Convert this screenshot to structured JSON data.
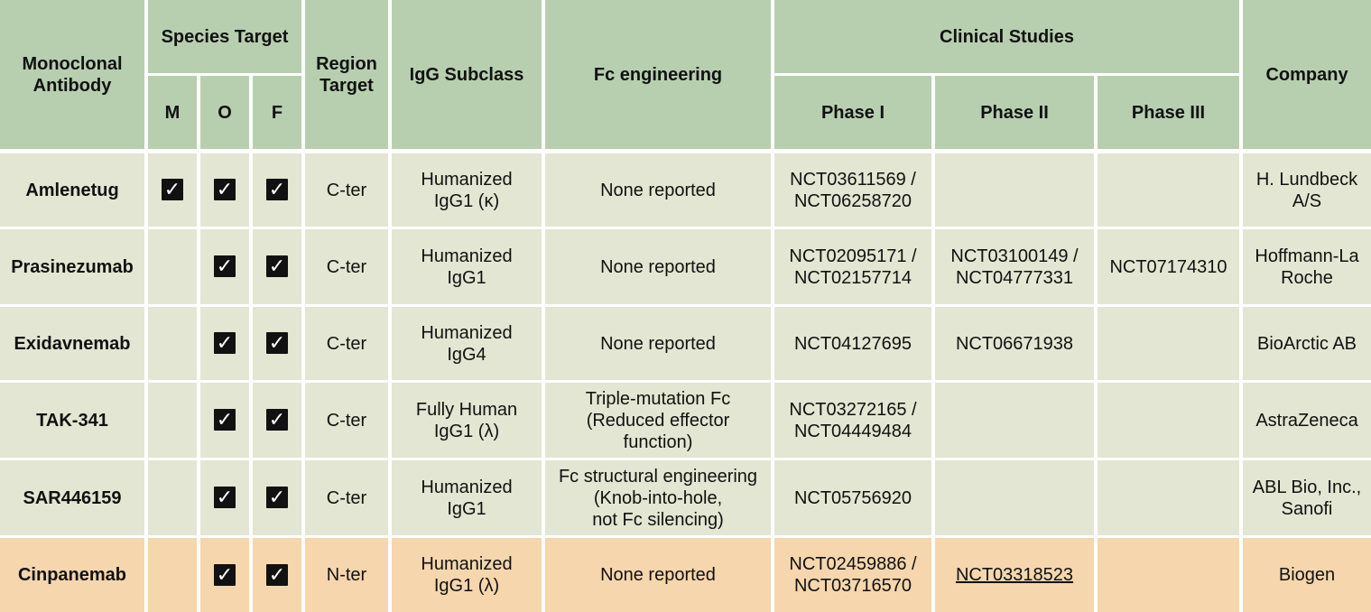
{
  "header": {
    "antibody": "Monoclonal Antibody",
    "species_target": "Species Target",
    "species": {
      "m": "M",
      "o": "O",
      "f": "F"
    },
    "region_target": "Region Target",
    "igg_subclass": "IgG Subclass",
    "fc_engineering": "Fc engineering",
    "clinical_studies": "Clinical Studies",
    "phases": {
      "p1": "Phase I",
      "p2": "Phase II",
      "p3": "Phase III"
    },
    "company": "Company"
  },
  "check_glyph": "✓",
  "rows": [
    {
      "name": "Amlenetug",
      "m": "✓",
      "o": "✓",
      "f": "✓",
      "region": "C-ter",
      "igg": "Humanized\nIgG1 (κ)",
      "fc": "None reported",
      "phase1": "NCT03611569 /\nNCT06258720",
      "phase2": "",
      "phase3": "",
      "company": "H. Lundbeck\nA/S"
    },
    {
      "name": "Prasinezumab",
      "m": "",
      "o": "✓",
      "f": "✓",
      "region": "C-ter",
      "igg": "Humanized\nIgG1",
      "fc": "None reported",
      "phase1": "NCT02095171 /\nNCT02157714",
      "phase2": "NCT03100149 /\nNCT04777331",
      "phase3": "NCT07174310",
      "company": "Hoffmann-La\nRoche"
    },
    {
      "name": "Exidavnemab",
      "m": "",
      "o": "✓",
      "f": "✓",
      "region": "C-ter",
      "igg": "Humanized\nIgG4",
      "fc": "None reported",
      "phase1": "NCT04127695",
      "phase2": "NCT06671938",
      "phase3": "",
      "company": "BioArctic AB"
    },
    {
      "name": "TAK-341",
      "m": "",
      "o": "✓",
      "f": "✓",
      "region": "C-ter",
      "igg": "Fully Human\nIgG1 (λ)",
      "fc": "Triple-mutation Fc\n(Reduced effector\nfunction)",
      "phase1": "NCT03272165 /\nNCT04449484",
      "phase2": "",
      "phase3": "",
      "company": "AstraZeneca"
    },
    {
      "name": "SAR446159",
      "m": "",
      "o": "✓",
      "f": "✓",
      "region": "C-ter",
      "igg": "Humanized\nIgG1",
      "fc": "Fc structural engineering\n(Knob-into-hole,\nnot Fc silencing)",
      "phase1": "NCT05756920",
      "phase2": "",
      "phase3": "",
      "company": "ABL Bio, Inc.,\nSanofi"
    },
    {
      "name": "Cinpanemab",
      "m": "",
      "o": "✓",
      "f": "✓",
      "region": "N-ter",
      "igg": "Humanized\nIgG1 (λ)",
      "fc": "None reported",
      "phase1": "NCT02459886 /\nNCT03716570",
      "phase2": "NCT03318523",
      "phase3": "",
      "company": "Biogen"
    }
  ]
}
